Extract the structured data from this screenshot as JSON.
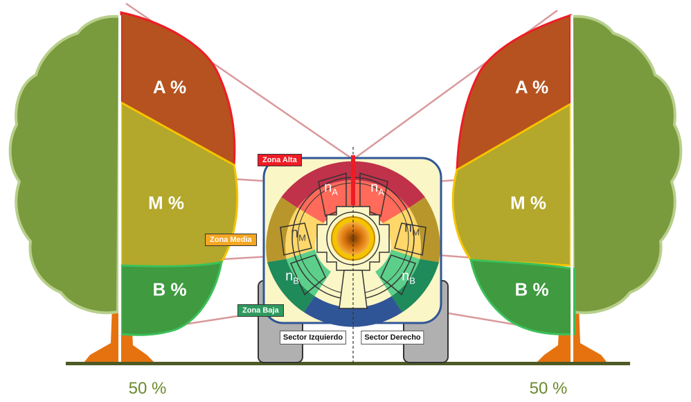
{
  "left_tree": {
    "alta": "A %",
    "media": "M %",
    "baja": "B %",
    "width_label": "50 %"
  },
  "right_tree": {
    "alta": "A %",
    "media": "M %",
    "baja": "B %",
    "width_label": "50 %"
  },
  "zones": {
    "alta": "Zona Alta",
    "media": "Zona Media",
    "baja": "Zona Baja"
  },
  "sectors": {
    "left": "Sector Izquierdo",
    "right": "Sector Derecho"
  },
  "nozzles": {
    "alta_left": {
      "base": "n",
      "sub": "A"
    },
    "alta_right": {
      "base": "n",
      "sub": "A"
    },
    "media_left": {
      "base": "n",
      "sub": "M"
    },
    "media_right": {
      "base": "n",
      "sub": "M"
    },
    "baja_left": {
      "base": "n",
      "sub": "B"
    },
    "baja_right": {
      "base": "n",
      "sub": "B"
    }
  },
  "colors": {
    "foliage": "#7a9a3e",
    "foliage_edge": "#b7cf8a",
    "trunk": "#e5720f",
    "zona_alta": "#ee1c24",
    "zona_media": "#f5a623",
    "zona_baja": "#2e9a5e",
    "alta_fill": "#b5521f",
    "media_fill": "#b3a72c",
    "baja_fill": "#3f9a40",
    "ground": "#4d5a25",
    "sprayer_bg": "#fbf6c6",
    "sprayer_border": "#2f5597"
  }
}
